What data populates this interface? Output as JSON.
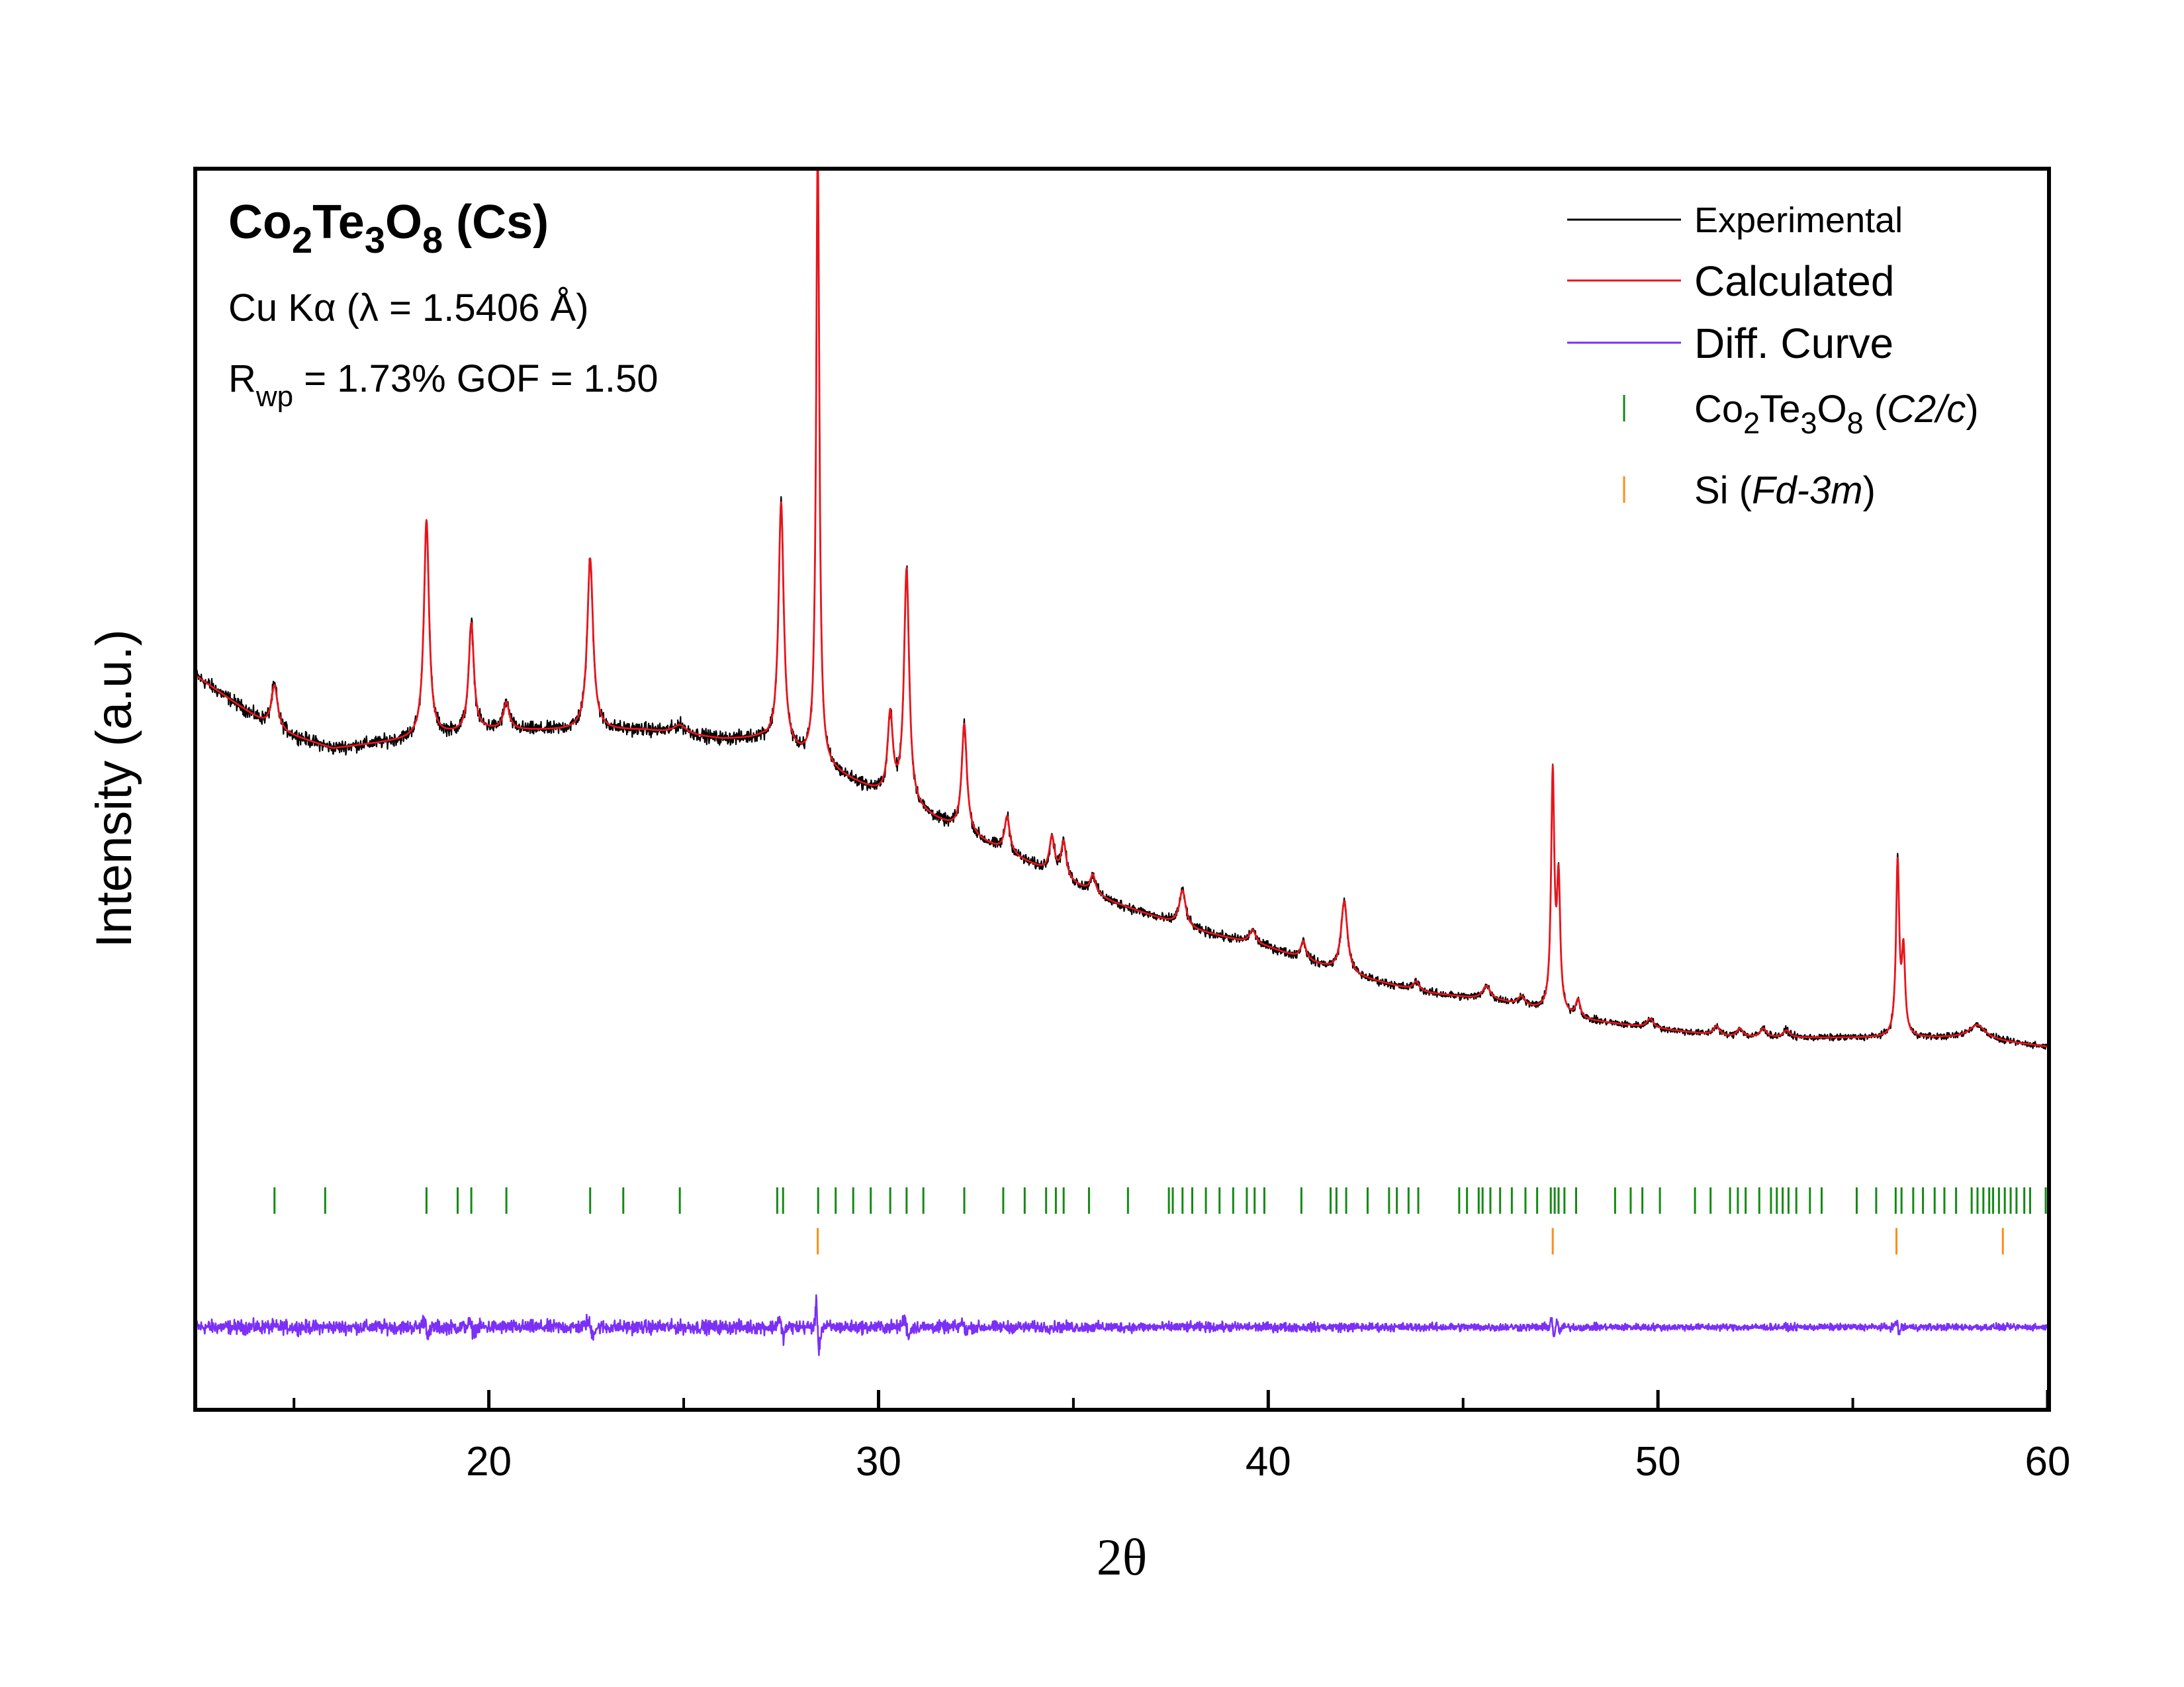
{
  "chart_data": {
    "type": "line",
    "title": {
      "formula_parts": [
        {
          "t": "Co",
          "sub": false
        },
        {
          "t": "2",
          "sub": true
        },
        {
          "t": "Te",
          "sub": false
        },
        {
          "t": "3",
          "sub": true
        },
        {
          "t": "O",
          "sub": false
        },
        {
          "t": "8",
          "sub": true
        }
      ],
      "suffix": " (Cs)"
    },
    "annotation_source": "Cu Kα (λ = 1.5406 Å)",
    "annotation_r": "R",
    "annotation_r_sub": "wp",
    "annotation_fit": " = 1.73%  GOF = 1.50",
    "xlabel": "2θ",
    "ylabel": "Intensity (a.u.)",
    "xlim": [
      12.5,
      60
    ],
    "ylim": [
      -0.3,
      1.07
    ],
    "x_ticks": [
      20,
      30,
      40,
      50,
      60
    ],
    "x_minor_ticks": [
      15,
      25,
      35,
      45,
      55
    ],
    "grid": false,
    "legend_position": "top-right",
    "colors": {
      "experimental": "#000000",
      "calculated": "#e8141c",
      "difference": "#7b2ff7",
      "phase1_ticks": "#138a13",
      "phase2_ticks": "#ff8c1a"
    },
    "legend": [
      {
        "kind": "line",
        "key": "experimental",
        "parts": [
          {
            "t": "Experimental",
            "sub": false,
            "it": false
          }
        ]
      },
      {
        "kind": "line",
        "key": "calculated",
        "parts": [
          {
            "t": "Calculated",
            "sub": false,
            "it": false
          }
        ]
      },
      {
        "kind": "line",
        "key": "difference",
        "parts": [
          {
            "t": "Diff. Curve",
            "sub": false,
            "it": false
          }
        ]
      },
      {
        "kind": "tick",
        "key": "phase1_ticks",
        "parts": [
          {
            "t": "Co",
            "sub": false,
            "it": false
          },
          {
            "t": "2",
            "sub": true,
            "it": false
          },
          {
            "t": "Te",
            "sub": false,
            "it": false
          },
          {
            "t": "3",
            "sub": true,
            "it": false
          },
          {
            "t": "O",
            "sub": false,
            "it": false
          },
          {
            "t": "8",
            "sub": true,
            "it": false
          },
          {
            "t": " (",
            "sub": false,
            "it": false
          },
          {
            "t": "C2/c",
            "sub": false,
            "it": true
          },
          {
            "t": ")",
            "sub": false,
            "it": false
          }
        ]
      },
      {
        "kind": "tick",
        "key": "phase2_ticks",
        "parts": [
          {
            "t": "Si (",
            "sub": false,
            "it": false
          },
          {
            "t": "Fd-3m",
            "sub": false,
            "it": true
          },
          {
            "t": ")",
            "sub": false,
            "it": false
          }
        ]
      }
    ],
    "background": [
      [
        12.5,
        0.51
      ],
      [
        13.5,
        0.48
      ],
      [
        14.5,
        0.45
      ],
      [
        16,
        0.43
      ],
      [
        18,
        0.44
      ],
      [
        20,
        0.45
      ],
      [
        22,
        0.45
      ],
      [
        24,
        0.45
      ],
      [
        26,
        0.44
      ],
      [
        27,
        0.44
      ],
      [
        28,
        0.42
      ],
      [
        29,
        0.4
      ],
      [
        30,
        0.38
      ],
      [
        32,
        0.34
      ],
      [
        34,
        0.3
      ],
      [
        36,
        0.26
      ],
      [
        38,
        0.23
      ],
      [
        40,
        0.21
      ],
      [
        42,
        0.18
      ],
      [
        44,
        0.16
      ],
      [
        46,
        0.15
      ],
      [
        48,
        0.13
      ],
      [
        50,
        0.12
      ],
      [
        52,
        0.11
      ],
      [
        54,
        0.11
      ],
      [
        56,
        0.11
      ],
      [
        58,
        0.11
      ],
      [
        60,
        0.1
      ]
    ],
    "peaks": [
      {
        "x": 14.5,
        "h": 0.05,
        "w": 0.1
      },
      {
        "x": 18.4,
        "h": 0.24,
        "w": 0.08
      },
      {
        "x": 19.55,
        "h": 0.12,
        "w": 0.08
      },
      {
        "x": 20.45,
        "h": 0.03,
        "w": 0.09
      },
      {
        "x": 22.6,
        "h": 0.19,
        "w": 0.09
      },
      {
        "x": 24.9,
        "h": 0.01,
        "w": 0.2
      },
      {
        "x": 27.5,
        "h": 0.27,
        "w": 0.08
      },
      {
        "x": 28.44,
        "h": 0.68,
        "w": 0.05
      },
      {
        "x": 30.3,
        "h": 0.09,
        "w": 0.08
      },
      {
        "x": 30.72,
        "h": 0.26,
        "w": 0.08
      },
      {
        "x": 32.2,
        "h": 0.12,
        "w": 0.08
      },
      {
        "x": 33.3,
        "h": 0.04,
        "w": 0.08
      },
      {
        "x": 34.45,
        "h": 0.04,
        "w": 0.08
      },
      {
        "x": 34.75,
        "h": 0.04,
        "w": 0.08
      },
      {
        "x": 35.5,
        "h": 0.02,
        "w": 0.08
      },
      {
        "x": 37.8,
        "h": 0.04,
        "w": 0.1
      },
      {
        "x": 39.6,
        "h": 0.015,
        "w": 0.1
      },
      {
        "x": 40.9,
        "h": 0.02,
        "w": 0.08
      },
      {
        "x": 41.95,
        "h": 0.08,
        "w": 0.1
      },
      {
        "x": 43.8,
        "h": 0.01,
        "w": 0.1
      },
      {
        "x": 45.6,
        "h": 0.015,
        "w": 0.12
      },
      {
        "x": 46.5,
        "h": 0.01,
        "w": 0.1
      },
      {
        "x": 47.3,
        "h": 0.26,
        "w": 0.05
      },
      {
        "x": 47.45,
        "h": 0.14,
        "w": 0.05
      },
      {
        "x": 47.95,
        "h": 0.02,
        "w": 0.07
      },
      {
        "x": 49.8,
        "h": 0.01,
        "w": 0.1
      },
      {
        "x": 51.5,
        "h": 0.01,
        "w": 0.1
      },
      {
        "x": 52.1,
        "h": 0.01,
        "w": 0.1
      },
      {
        "x": 52.7,
        "h": 0.01,
        "w": 0.1
      },
      {
        "x": 53.3,
        "h": 0.008,
        "w": 0.1
      },
      {
        "x": 56.15,
        "h": 0.19,
        "w": 0.05
      },
      {
        "x": 56.3,
        "h": 0.09,
        "w": 0.05
      },
      {
        "x": 58.2,
        "h": 0.015,
        "w": 0.25
      }
    ],
    "phase1_reflections": [
      14.5,
      15.8,
      18.4,
      19.2,
      19.55,
      20.45,
      22.6,
      23.45,
      24.9,
      27.4,
      27.55,
      28.45,
      28.9,
      29.35,
      29.8,
      30.3,
      30.72,
      31.15,
      32.2,
      33.2,
      33.75,
      34.3,
      34.55,
      34.75,
      35.4,
      36.4,
      37.45,
      37.55,
      37.8,
      38.05,
      38.4,
      38.75,
      39.1,
      39.45,
      39.65,
      39.9,
      40.85,
      41.6,
      41.75,
      42,
      42.55,
      43.1,
      43.3,
      43.6,
      43.85,
      44.9,
      45.1,
      45.4,
      45.5,
      45.7,
      45.95,
      46.25,
      46.6,
      46.9,
      47.25,
      47.35,
      47.45,
      47.6,
      47.9,
      48.9,
      49.3,
      49.6,
      50.05,
      50.95,
      51.35,
      51.85,
      52.05,
      52.25,
      52.6,
      52.9,
      53.05,
      53.2,
      53.35,
      53.55,
      53.9,
      54.2,
      55.1,
      55.6,
      56.1,
      56.25,
      56.55,
      56.8,
      57.1,
      57.35,
      57.65,
      58.05,
      58.2,
      58.35,
      58.5,
      58.6,
      58.75,
      58.9,
      59.05,
      59.2,
      59.4,
      59.55,
      59.95
    ],
    "phase2_reflections": [
      28.44,
      47.3,
      56.12,
      58.85
    ],
    "diff_offset": -0.21,
    "tick_row_phase1": -0.07,
    "tick_row_phase2": -0.115
  }
}
